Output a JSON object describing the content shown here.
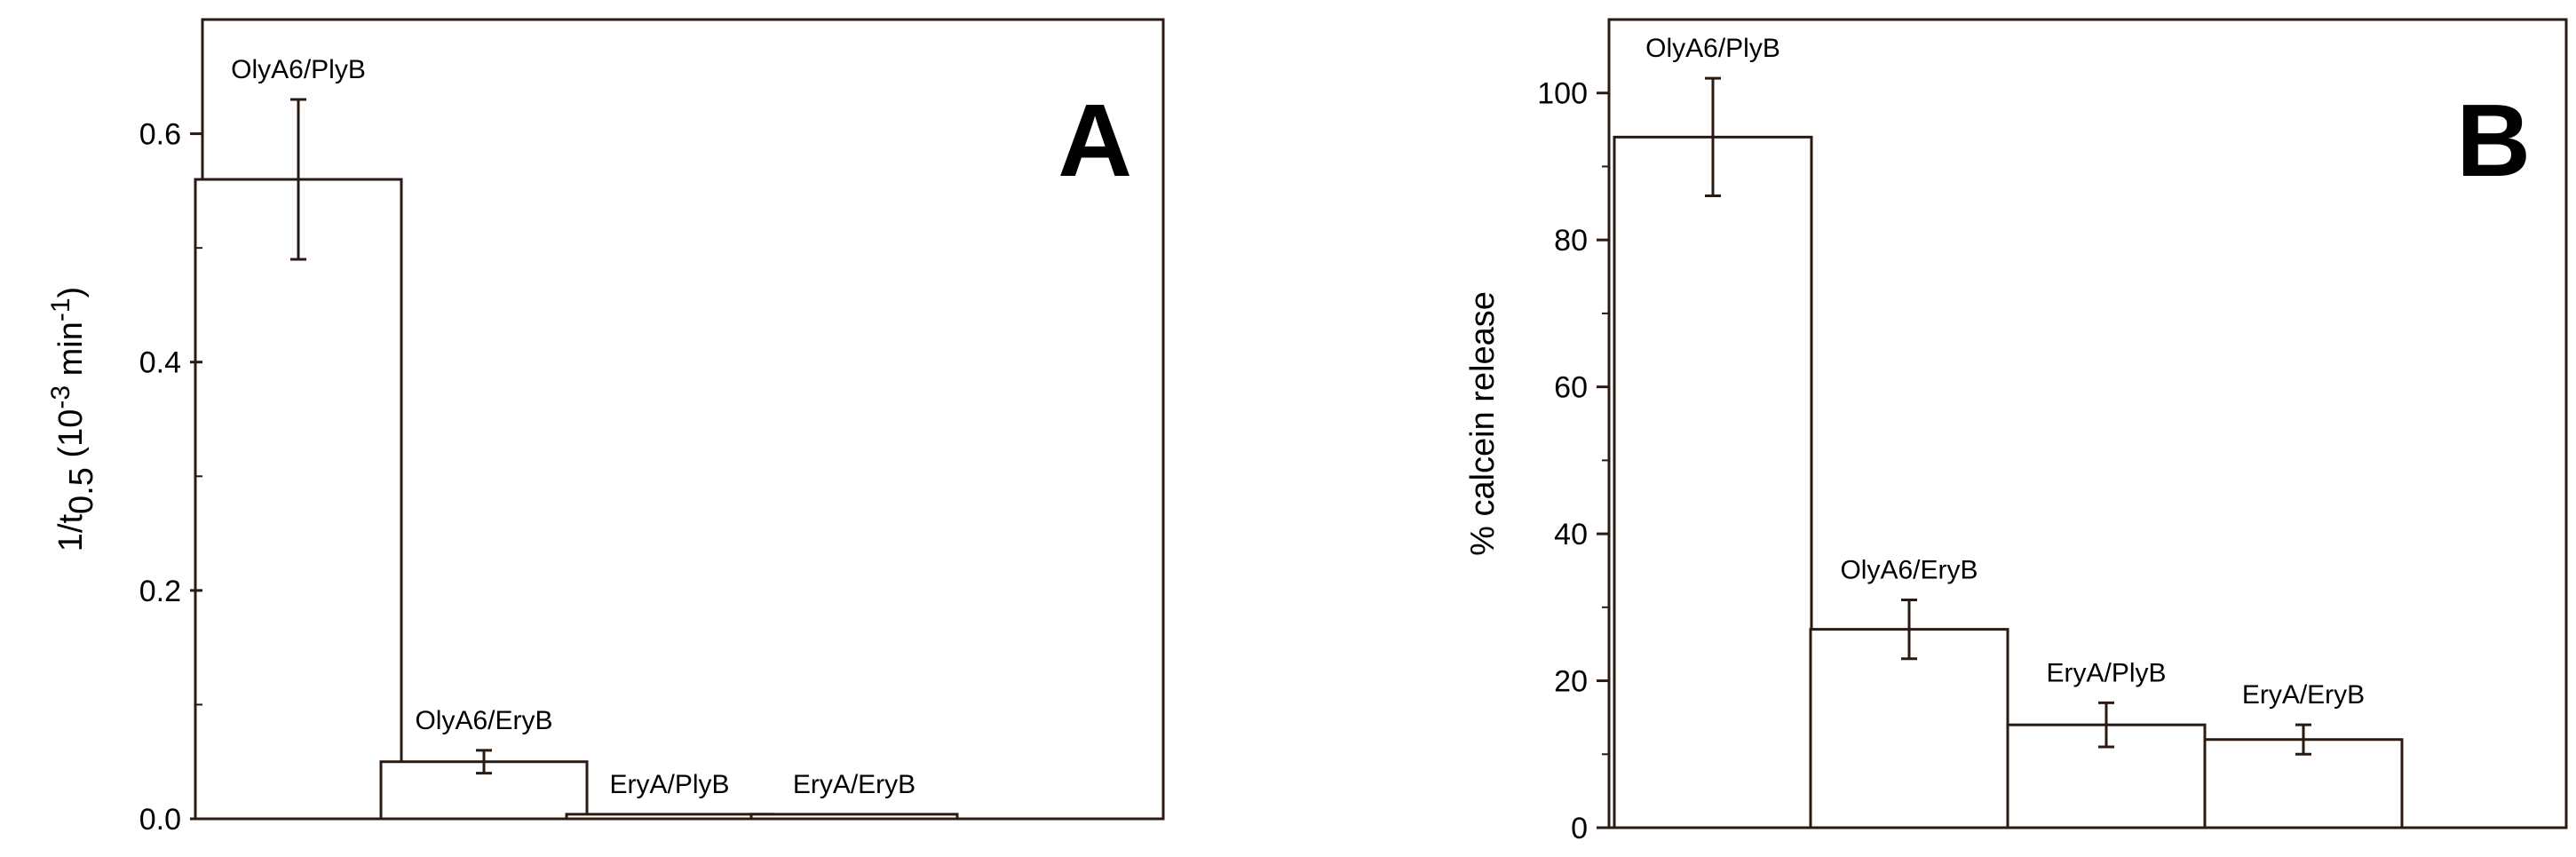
{
  "chart_data": [
    {
      "type": "bar",
      "panel_label": "A",
      "categories": [
        "OlyA6/PlyB",
        "OlyA6/EryB",
        "EryA/PlyB",
        "EryA/EryB"
      ],
      "values": [
        0.56,
        0.05,
        0.004,
        0.004
      ],
      "errors": [
        0.07,
        0.01,
        0,
        0
      ],
      "ylabel": {
        "prefix": "1/t",
        "sub": "0.5",
        "mid": " (10",
        "sup1": "-3",
        "mid2": " min",
        "sup2": "-1",
        "suffix": ")"
      },
      "ylim": [
        0,
        0.7
      ],
      "yticks": [
        "0.0",
        "0.2",
        "0.4",
        "0.6"
      ],
      "ytick_values": [
        0,
        0.2,
        0.4,
        0.6
      ],
      "grid": false,
      "bar_fill": "#ffffff",
      "bar_stroke": "#2a1a10",
      "bar_labels_on_top": true
    },
    {
      "type": "bar",
      "panel_label": "B",
      "categories": [
        "OlyA6/PlyB",
        "OlyA6/EryB",
        "EryA/PlyB",
        "EryA/EryB"
      ],
      "values": [
        94,
        27,
        14,
        12
      ],
      "errors": [
        8,
        4,
        3,
        2
      ],
      "ylabel": "% calcein release",
      "ylim": [
        0,
        110
      ],
      "yticks": [
        "0",
        "20",
        "40",
        "60",
        "80",
        "100"
      ],
      "ytick_values": [
        0,
        20,
        40,
        60,
        80,
        100
      ],
      "grid": false,
      "bar_fill": "#ffffff",
      "bar_stroke": "#2a1a10",
      "bar_labels_on_top": true
    }
  ]
}
